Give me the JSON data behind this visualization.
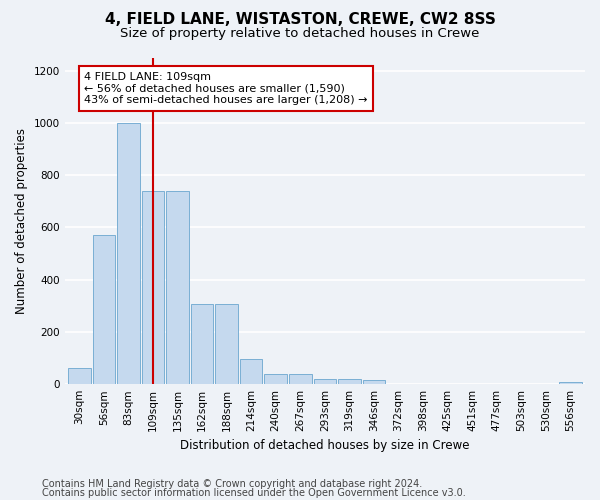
{
  "title": "4, FIELD LANE, WISTASTON, CREWE, CW2 8SS",
  "subtitle": "Size of property relative to detached houses in Crewe",
  "xlabel": "Distribution of detached houses by size in Crewe",
  "ylabel": "Number of detached properties",
  "footer_line1": "Contains HM Land Registry data © Crown copyright and database right 2024.",
  "footer_line2": "Contains public sector information licensed under the Open Government Licence v3.0.",
  "bar_labels": [
    "30sqm",
    "56sqm",
    "83sqm",
    "109sqm",
    "135sqm",
    "162sqm",
    "188sqm",
    "214sqm",
    "240sqm",
    "267sqm",
    "293sqm",
    "319sqm",
    "346sqm",
    "372sqm",
    "398sqm",
    "425sqm",
    "451sqm",
    "477sqm",
    "503sqm",
    "530sqm",
    "556sqm"
  ],
  "bar_values": [
    60,
    570,
    1000,
    740,
    740,
    305,
    305,
    95,
    40,
    40,
    20,
    20,
    15,
    0,
    0,
    0,
    0,
    0,
    0,
    0,
    10
  ],
  "bar_color": "#c5d9ee",
  "bar_edge_color": "#7aafd4",
  "highlight_index": 3,
  "highlight_line_color": "#cc0000",
  "annotation_text": "4 FIELD LANE: 109sqm\n← 56% of detached houses are smaller (1,590)\n43% of semi-detached houses are larger (1,208) →",
  "annotation_box_color": "#ffffff",
  "annotation_box_edge_color": "#cc0000",
  "ylim": [
    0,
    1250
  ],
  "yticks": [
    0,
    200,
    400,
    600,
    800,
    1000,
    1200
  ],
  "bg_color": "#eef2f7",
  "plot_bg_color": "#eef2f7",
  "grid_color": "#ffffff",
  "title_fontsize": 11,
  "subtitle_fontsize": 9.5,
  "axis_label_fontsize": 8.5,
  "tick_fontsize": 7.5,
  "annotation_fontsize": 8,
  "footer_fontsize": 7
}
